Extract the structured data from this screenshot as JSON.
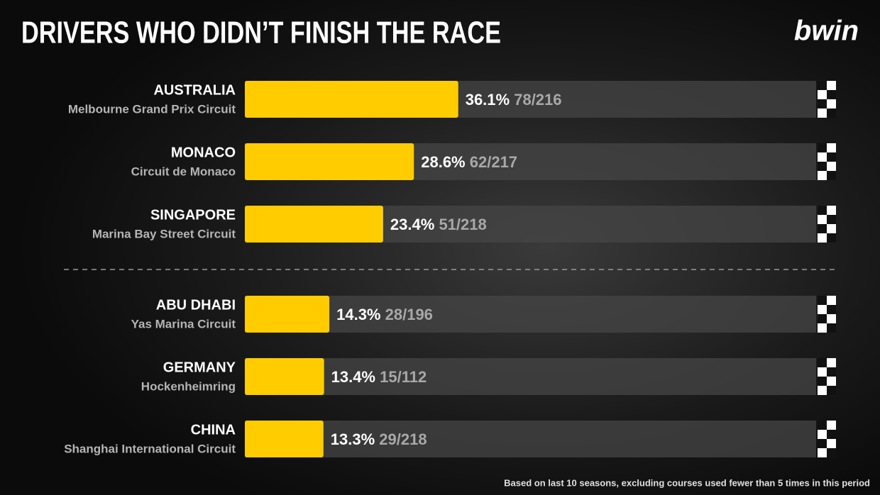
{
  "chart_data": {
    "type": "bar",
    "orientation": "horizontal",
    "title": "DRIVERS WHO DIDN’T FINISH THE RACE",
    "brand": "bwin",
    "categories": [
      "AUSTRALIA",
      "MONACO",
      "SINGAPORE",
      "ABU DHABI",
      "GERMANY",
      "CHINA"
    ],
    "circuits": [
      "Melbourne Grand Prix Circuit",
      "Circuit de Monaco",
      "Marina Bay Street Circuit",
      "Yas Marina Circuit",
      "Hockenheimring",
      "Shanghai International Circuit"
    ],
    "values": [
      36.1,
      28.6,
      23.4,
      14.3,
      13.4,
      13.3
    ],
    "value_labels": [
      "36.1%",
      "28.6%",
      "23.4%",
      "14.3%",
      "13.4%",
      "13.3%"
    ],
    "counts": [
      "78/216",
      "62/217",
      "51/218",
      "28/196",
      "15/112",
      "29/218"
    ],
    "xlim": [
      0,
      100
    ],
    "color": "#ffcc00",
    "footnote": "Based on last 10 seasons, excluding courses used fewer than 5 times in this period"
  }
}
